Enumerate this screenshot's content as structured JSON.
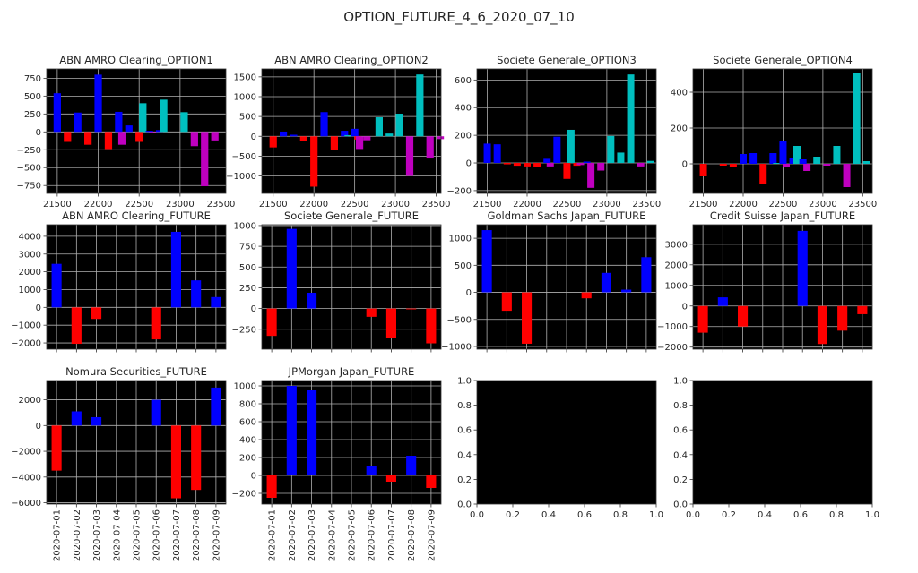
{
  "chart_data": {
    "title": "OPTION_FUTURE_4_6_2020_07_10",
    "colors": {
      "b": "#0000ff",
      "r": "#ff0000",
      "c": "#00bfbf",
      "m": "#bf00bf"
    },
    "dates": [
      "2020-07-01",
      "2020-07-02",
      "2020-07-03",
      "2020-07-04",
      "2020-07-05",
      "2020-07-06",
      "2020-07-07",
      "2020-07-08",
      "2020-07-09"
    ],
    "subplots": [
      {
        "type": "bar",
        "kind": "option",
        "title": "ABN AMRO Clearing_OPTION1",
        "xlim": [
          21370,
          23560
        ],
        "xticks": [
          21500,
          22000,
          22500,
          23000,
          23500
        ],
        "ylim": [
          -860,
          880
        ],
        "yticks": [
          -750,
          -500,
          -250,
          0,
          250,
          500,
          750
        ],
        "bars": [
          {
            "x": 21500,
            "y": 540,
            "c": "b"
          },
          {
            "x": 21625,
            "y": -140,
            "c": "r"
          },
          {
            "x": 21750,
            "y": 270,
            "c": "b"
          },
          {
            "x": 21875,
            "y": -180,
            "c": "r"
          },
          {
            "x": 22000,
            "y": 800,
            "c": "b"
          },
          {
            "x": 22125,
            "y": -240,
            "c": "r"
          },
          {
            "x": 22250,
            "y": 280,
            "c": "b"
          },
          {
            "x": 22290,
            "y": -180,
            "c": "m"
          },
          {
            "x": 22375,
            "y": 90,
            "c": "b"
          },
          {
            "x": 22500,
            "y": -140,
            "c": "r"
          },
          {
            "x": 22545,
            "y": 400,
            "c": "c"
          },
          {
            "x": 22625,
            "y": 15,
            "c": "b"
          },
          {
            "x": 22665,
            "y": -15,
            "c": "m"
          },
          {
            "x": 22750,
            "y": 25,
            "c": "b"
          },
          {
            "x": 22800,
            "y": 450,
            "c": "c"
          },
          {
            "x": 23050,
            "y": 275,
            "c": "c"
          },
          {
            "x": 23175,
            "y": -200,
            "c": "m"
          },
          {
            "x": 23300,
            "y": -760,
            "c": "m"
          },
          {
            "x": 23425,
            "y": -120,
            "c": "m"
          }
        ]
      },
      {
        "type": "bar",
        "kind": "option",
        "title": "ABN AMRO Clearing_OPTION2",
        "xlim": [
          21360,
          23560
        ],
        "xticks": [
          21500,
          22000,
          22500,
          23000,
          23500
        ],
        "ylim": [
          -1440,
          1700
        ],
        "yticks": [
          -1000,
          -500,
          0,
          500,
          1000,
          1500
        ],
        "bars": [
          {
            "x": 21500,
            "y": -280,
            "c": "r"
          },
          {
            "x": 21625,
            "y": 120,
            "c": "b"
          },
          {
            "x": 21750,
            "y": 40,
            "c": "b"
          },
          {
            "x": 21875,
            "y": -120,
            "c": "r"
          },
          {
            "x": 22000,
            "y": -1270,
            "c": "r"
          },
          {
            "x": 22125,
            "y": 610,
            "c": "b"
          },
          {
            "x": 22250,
            "y": -340,
            "c": "r"
          },
          {
            "x": 22375,
            "y": 140,
            "c": "b"
          },
          {
            "x": 22420,
            "y": 30,
            "c": "c"
          },
          {
            "x": 22500,
            "y": 190,
            "c": "b"
          },
          {
            "x": 22540,
            "y": -80,
            "c": "r"
          },
          {
            "x": 22560,
            "y": -320,
            "c": "m"
          },
          {
            "x": 22650,
            "y": -100,
            "c": "m"
          },
          {
            "x": 22800,
            "y": 480,
            "c": "c"
          },
          {
            "x": 22925,
            "y": 70,
            "c": "c"
          },
          {
            "x": 23050,
            "y": 570,
            "c": "c"
          },
          {
            "x": 23175,
            "y": -1000,
            "c": "m"
          },
          {
            "x": 23300,
            "y": 1560,
            "c": "c"
          },
          {
            "x": 23425,
            "y": -560,
            "c": "m"
          },
          {
            "x": 23550,
            "y": -70,
            "c": "m"
          }
        ]
      },
      {
        "type": "bar",
        "kind": "option",
        "title": "Societe Generale_OPTION3",
        "xlim": [
          21370,
          23620
        ],
        "xticks": [
          21500,
          22000,
          22500,
          23000,
          23500
        ],
        "ylim": [
          -220,
          680
        ],
        "yticks": [
          -200,
          0,
          200,
          400,
          600
        ],
        "bars": [
          {
            "x": 21500,
            "y": 140,
            "c": "b"
          },
          {
            "x": 21625,
            "y": 135,
            "c": "b"
          },
          {
            "x": 21750,
            "y": -10,
            "c": "r"
          },
          {
            "x": 21875,
            "y": -20,
            "c": "r"
          },
          {
            "x": 22000,
            "y": -25,
            "c": "r"
          },
          {
            "x": 22125,
            "y": -30,
            "c": "r"
          },
          {
            "x": 22250,
            "y": 30,
            "c": "b"
          },
          {
            "x": 22290,
            "y": -25,
            "c": "m"
          },
          {
            "x": 22375,
            "y": 190,
            "c": "b"
          },
          {
            "x": 22500,
            "y": -115,
            "c": "r"
          },
          {
            "x": 22550,
            "y": 240,
            "c": "c"
          },
          {
            "x": 22625,
            "y": -20,
            "c": "r"
          },
          {
            "x": 22670,
            "y": -15,
            "c": "m"
          },
          {
            "x": 22750,
            "y": 10,
            "c": "b"
          },
          {
            "x": 22800,
            "y": -180,
            "c": "m"
          },
          {
            "x": 22925,
            "y": -55,
            "c": "m"
          },
          {
            "x": 23050,
            "y": 195,
            "c": "c"
          },
          {
            "x": 23175,
            "y": 75,
            "c": "c"
          },
          {
            "x": 23300,
            "y": 640,
            "c": "c"
          },
          {
            "x": 23425,
            "y": -25,
            "c": "m"
          },
          {
            "x": 23550,
            "y": 15,
            "c": "c"
          }
        ]
      },
      {
        "type": "bar",
        "kind": "option",
        "title": "Societe Generale_OPTION4",
        "xlim": [
          21370,
          23620
        ],
        "xticks": [
          21500,
          22000,
          22500,
          23000,
          23500
        ],
        "ylim": [
          -165,
          530
        ],
        "yticks": [
          0,
          200,
          400
        ],
        "bars": [
          {
            "x": 21500,
            "y": -70,
            "c": "r"
          },
          {
            "x": 21750,
            "y": -10,
            "c": "r"
          },
          {
            "x": 21875,
            "y": -15,
            "c": "r"
          },
          {
            "x": 22000,
            "y": 55,
            "c": "b"
          },
          {
            "x": 22125,
            "y": 60,
            "c": "b"
          },
          {
            "x": 22250,
            "y": -110,
            "c": "r"
          },
          {
            "x": 22375,
            "y": 60,
            "c": "b"
          },
          {
            "x": 22420,
            "y": 5,
            "c": "c"
          },
          {
            "x": 22500,
            "y": 125,
            "c": "b"
          },
          {
            "x": 22540,
            "y": -20,
            "c": "m"
          },
          {
            "x": 22625,
            "y": 30,
            "c": "b"
          },
          {
            "x": 22675,
            "y": 100,
            "c": "c"
          },
          {
            "x": 22750,
            "y": 25,
            "c": "b"
          },
          {
            "x": 22800,
            "y": -40,
            "c": "m"
          },
          {
            "x": 22925,
            "y": 40,
            "c": "c"
          },
          {
            "x": 23050,
            "y": -10,
            "c": "m"
          },
          {
            "x": 23175,
            "y": 100,
            "c": "c"
          },
          {
            "x": 23300,
            "y": -130,
            "c": "m"
          },
          {
            "x": 23425,
            "y": 505,
            "c": "c"
          },
          {
            "x": 23550,
            "y": 15,
            "c": "c"
          }
        ]
      },
      {
        "type": "bar",
        "kind": "future",
        "title": "ABN AMRO Clearing_FUTURE",
        "ylim": [
          -2350,
          4650
        ],
        "yticks": [
          -2000,
          -1000,
          0,
          1000,
          2000,
          3000,
          4000
        ],
        "values": [
          2450,
          -2050,
          -650,
          0,
          0,
          -1800,
          4250,
          1520,
          580
        ],
        "showDates": false
      },
      {
        "type": "bar",
        "kind": "future",
        "title": "Societe Generale_FUTURE",
        "ylim": [
          -490,
          1010
        ],
        "yticks": [
          -250,
          0,
          250,
          500,
          750,
          1000
        ],
        "values": [
          -330,
          960,
          190,
          0,
          0,
          -100,
          -360,
          -10,
          -420
        ],
        "showDates": false
      },
      {
        "type": "bar",
        "kind": "future",
        "title": "Goldman Sachs Japan_FUTURE",
        "ylim": [
          -1050,
          1250
        ],
        "yticks": [
          -1000,
          -500,
          0,
          500,
          1000
        ],
        "values": [
          1150,
          -340,
          -950,
          0,
          0,
          -110,
          360,
          50,
          650
        ],
        "showDates": false
      },
      {
        "type": "bar",
        "kind": "future",
        "title": "Credit Suisse Japan_FUTURE",
        "ylim": [
          -2100,
          3950
        ],
        "yticks": [
          -2000,
          -1000,
          0,
          1000,
          2000,
          3000
        ],
        "values": [
          -1300,
          420,
          -1000,
          0,
          0,
          3650,
          -1850,
          -1200,
          -400
        ],
        "showDates": false
      },
      {
        "type": "bar",
        "kind": "future",
        "title": "Nomura Securities_FUTURE",
        "ylim": [
          -6100,
          3500
        ],
        "yticks": [
          -6000,
          -4000,
          -2000,
          0,
          2000
        ],
        "values": [
          -3500,
          1100,
          650,
          0,
          0,
          2000,
          -5650,
          -5000,
          2950
        ],
        "showDates": true
      },
      {
        "type": "bar",
        "kind": "future",
        "title": "JPMorgan Japan_FUTURE",
        "ylim": [
          -320,
          1060
        ],
        "yticks": [
          -200,
          0,
          200,
          400,
          600,
          800,
          1000
        ],
        "values": [
          -250,
          1000,
          950,
          0,
          0,
          100,
          -70,
          220,
          -140
        ],
        "showDates": true
      },
      {
        "type": "empty",
        "kind": "empty",
        "title": "",
        "xlim": [
          0,
          1
        ],
        "ylim": [
          0,
          1
        ],
        "xticks": [
          0,
          0.2,
          0.4,
          0.6,
          0.8,
          1.0
        ],
        "yticks": [
          0,
          0.2,
          0.4,
          0.6,
          0.8,
          1.0
        ]
      },
      {
        "type": "empty",
        "kind": "empty",
        "title": "",
        "xlim": [
          0,
          1
        ],
        "ylim": [
          0,
          1
        ],
        "xticks": [
          0,
          0.2,
          0.4,
          0.6,
          0.8,
          1.0
        ],
        "yticks": [
          0,
          0.2,
          0.4,
          0.6,
          0.8,
          1.0
        ]
      }
    ]
  }
}
